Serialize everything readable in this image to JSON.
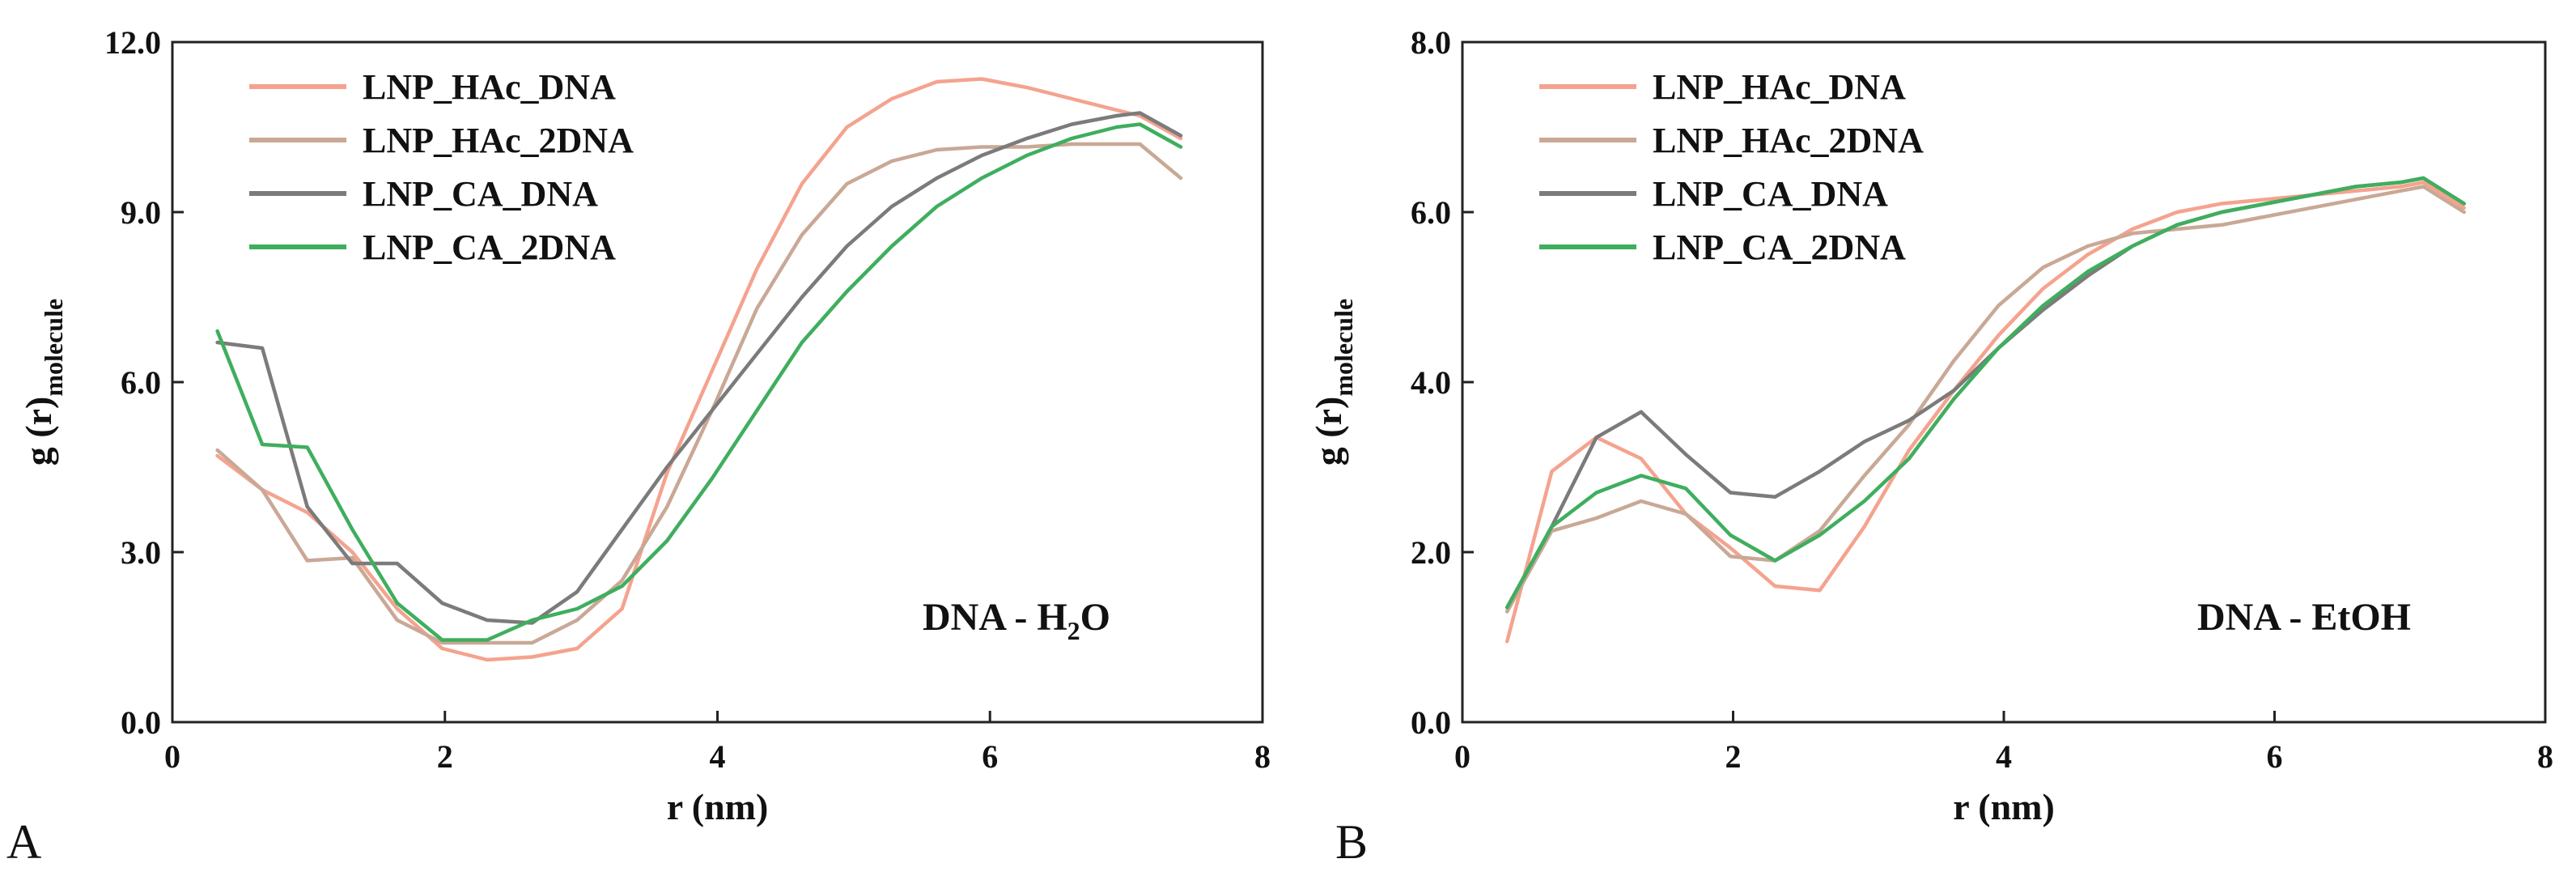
{
  "chart_data": [
    {
      "type": "line",
      "panel_label": "A",
      "xlabel": "r (nm)",
      "ylabel": {
        "main": "g (r)",
        "sub": "molecule"
      },
      "xlim": [
        0,
        8
      ],
      "ylim": [
        0,
        12
      ],
      "xticks": [
        0,
        2,
        4,
        6,
        8
      ],
      "xtick_labels": [
        "0",
        "2",
        "4",
        "6",
        "8"
      ],
      "yticks": [
        0,
        3,
        6,
        9,
        12
      ],
      "ytick_labels": [
        "0.0",
        "3.0",
        "6.0",
        "9.0",
        "12.0"
      ],
      "annotation": {
        "main": "DNA - H",
        "sub": "2",
        "tail": "O"
      },
      "legend_position": "top-left",
      "x": [
        0.33,
        0.66,
        0.99,
        1.32,
        1.65,
        1.98,
        2.31,
        2.64,
        2.97,
        3.3,
        3.63,
        3.96,
        4.29,
        4.62,
        4.95,
        5.28,
        5.61,
        5.94,
        6.27,
        6.6,
        6.93,
        7.1,
        7.4
      ],
      "series": [
        {
          "name": "LNP_HAc_DNA",
          "color": "#f4a38f",
          "values": [
            4.7,
            4.1,
            3.7,
            3.0,
            2.0,
            1.3,
            1.1,
            1.15,
            1.3,
            2.0,
            4.4,
            6.2,
            8.0,
            9.5,
            10.5,
            11.0,
            11.3,
            11.35,
            11.2,
            11.0,
            10.8,
            10.7,
            10.3
          ]
        },
        {
          "name": "LNP_HAc_2DNA",
          "color": "#c9a896",
          "values": [
            4.8,
            4.1,
            2.85,
            2.9,
            1.8,
            1.4,
            1.4,
            1.4,
            1.8,
            2.5,
            3.8,
            5.5,
            7.3,
            8.6,
            9.5,
            9.9,
            10.1,
            10.15,
            10.15,
            10.2,
            10.2,
            10.2,
            9.6
          ]
        },
        {
          "name": "LNP_CA_DNA",
          "color": "#7b7b7b",
          "values": [
            6.7,
            6.6,
            3.8,
            2.8,
            2.8,
            2.1,
            1.8,
            1.75,
            2.3,
            3.4,
            4.5,
            5.5,
            6.5,
            7.5,
            8.4,
            9.1,
            9.6,
            10.0,
            10.3,
            10.55,
            10.7,
            10.75,
            10.35
          ]
        },
        {
          "name": "LNP_CA_2DNA",
          "color": "#3fae5e",
          "values": [
            6.9,
            4.9,
            4.85,
            3.4,
            2.1,
            1.45,
            1.45,
            1.8,
            2.0,
            2.4,
            3.2,
            4.3,
            5.5,
            6.7,
            7.6,
            8.4,
            9.1,
            9.6,
            10.0,
            10.3,
            10.5,
            10.55,
            10.15
          ]
        }
      ]
    },
    {
      "type": "line",
      "panel_label": "B",
      "xlabel": "r (nm)",
      "ylabel": {
        "main": "g (r)",
        "sub": "molecule"
      },
      "xlim": [
        0,
        8
      ],
      "ylim": [
        0,
        8
      ],
      "xticks": [
        0,
        2,
        4,
        6,
        8
      ],
      "xtick_labels": [
        "0",
        "2",
        "4",
        "6",
        "8"
      ],
      "yticks": [
        0,
        2,
        4,
        6,
        8
      ],
      "ytick_labels": [
        "0.0",
        "2.0",
        "4.0",
        "6.0",
        "8.0"
      ],
      "annotation": {
        "main": "DNA - EtOH",
        "sub": "",
        "tail": ""
      },
      "legend_position": "top-left",
      "x": [
        0.33,
        0.66,
        0.99,
        1.32,
        1.65,
        1.98,
        2.31,
        2.64,
        2.97,
        3.3,
        3.63,
        3.96,
        4.29,
        4.62,
        4.95,
        5.28,
        5.61,
        5.94,
        6.27,
        6.6,
        6.93,
        7.1,
        7.4
      ],
      "series": [
        {
          "name": "LNP_HAc_DNA",
          "color": "#f4a38f",
          "values": [
            0.95,
            2.95,
            3.35,
            3.1,
            2.45,
            2.05,
            1.6,
            1.55,
            2.3,
            3.2,
            3.9,
            4.55,
            5.1,
            5.5,
            5.8,
            6.0,
            6.1,
            6.15,
            6.2,
            6.25,
            6.3,
            6.35,
            6.05
          ]
        },
        {
          "name": "LNP_HAc_2DNA",
          "color": "#c9a896",
          "values": [
            1.3,
            2.25,
            2.4,
            2.6,
            2.45,
            1.95,
            1.9,
            2.25,
            2.9,
            3.5,
            4.25,
            4.9,
            5.35,
            5.6,
            5.75,
            5.8,
            5.85,
            5.95,
            6.05,
            6.15,
            6.25,
            6.3,
            6.0
          ]
        },
        {
          "name": "LNP_CA_DNA",
          "color": "#7b7b7b",
          "values": [
            1.35,
            2.3,
            3.35,
            3.65,
            3.15,
            2.7,
            2.65,
            2.95,
            3.3,
            3.55,
            3.9,
            4.4,
            4.85,
            5.25,
            5.6,
            5.85,
            6.0,
            6.1,
            6.2,
            6.3,
            6.35,
            6.4,
            6.1
          ]
        },
        {
          "name": "LNP_CA_2DNA",
          "color": "#3fae5e",
          "values": [
            1.35,
            2.3,
            2.7,
            2.9,
            2.75,
            2.2,
            1.9,
            2.2,
            2.6,
            3.1,
            3.8,
            4.4,
            4.9,
            5.3,
            5.6,
            5.85,
            6.0,
            6.1,
            6.2,
            6.3,
            6.35,
            6.4,
            6.1
          ]
        }
      ]
    }
  ]
}
